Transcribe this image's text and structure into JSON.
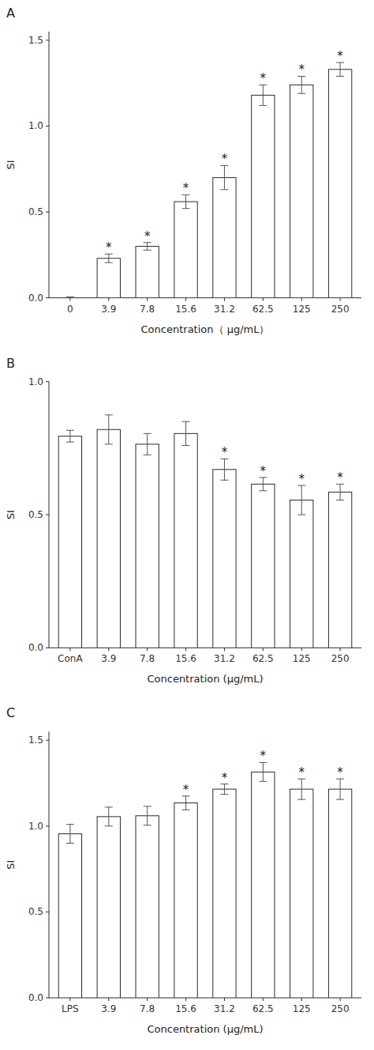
{
  "chart_data": [
    {
      "type": "bar",
      "title": "A",
      "categories": [
        "0",
        "3.9",
        "7.8",
        "15.6",
        "31.2",
        "62.5",
        "125",
        "250"
      ],
      "values": [
        0.0,
        0.23,
        0.3,
        0.56,
        0.7,
        1.18,
        1.24,
        1.33
      ],
      "errors": [
        0.005,
        0.025,
        0.022,
        0.04,
        0.07,
        0.06,
        0.05,
        0.04
      ],
      "annotations": [
        {
          "text": "*",
          "category": "3.9"
        },
        {
          "text": "*",
          "category": "7.8"
        },
        {
          "text": "*",
          "category": "15.6"
        },
        {
          "text": "*",
          "category": "31.2"
        },
        {
          "text": "*",
          "category": "62.5"
        },
        {
          "text": "*",
          "category": "125"
        },
        {
          "text": "*",
          "category": "250"
        }
      ],
      "ylabel": "SI",
      "xlabel": "Concentration（ μg/mL）",
      "ylim": [
        0.0,
        1.55
      ],
      "yticks": [
        {
          "value": 0.0,
          "label": "0.0"
        },
        0.5,
        {
          "value": 1.0,
          "label": "1.0"
        },
        1.5
      ],
      "color": "white"
    },
    {
      "type": "bar",
      "title": "B",
      "categories": [
        "ConA",
        "3.9",
        "7.8",
        "15.6",
        "31.2",
        "62.5",
        "125",
        "250"
      ],
      "values": [
        0.795,
        0.82,
        0.765,
        0.805,
        0.67,
        0.615,
        0.555,
        0.585
      ],
      "errors": [
        0.022,
        0.055,
        0.04,
        0.045,
        0.04,
        0.025,
        0.055,
        0.03
      ],
      "annotations": [
        {
          "text": "*",
          "category": "31.2"
        },
        {
          "text": "*",
          "category": "62.5"
        },
        {
          "text": "*",
          "category": "125"
        },
        {
          "text": "*",
          "category": "250"
        }
      ],
      "ylabel": "SI",
      "xlabel": "Concentration (μg/mL)",
      "ylim": [
        0.0,
        1.0
      ],
      "yticks": [
        {
          "value": 0.0,
          "label": "0.0"
        },
        0.5,
        {
          "value": 1.0,
          "label": "1.0"
        }
      ],
      "color": "white"
    },
    {
      "type": "bar",
      "title": "C",
      "categories": [
        "LPS",
        "3.9",
        "7.8",
        "15.6",
        "31.2",
        "62.5",
        "125",
        "250"
      ],
      "values": [
        0.955,
        1.055,
        1.06,
        1.135,
        1.215,
        1.315,
        1.215,
        1.215
      ],
      "errors": [
        0.055,
        0.055,
        0.055,
        0.04,
        0.03,
        0.055,
        0.06,
        0.06
      ],
      "annotations": [
        {
          "text": "*",
          "category": "15.6"
        },
        {
          "text": "*",
          "category": "31.2"
        },
        {
          "text": "*",
          "category": "62.5"
        },
        {
          "text": "*",
          "category": "125"
        },
        {
          "text": "*",
          "category": "250"
        }
      ],
      "ylabel": "SI",
      "xlabel": "Concentration (μg/mL)",
      "ylim": [
        0.0,
        1.55
      ],
      "yticks": [
        {
          "value": 0.0,
          "label": "0.0"
        },
        0.5,
        {
          "value": 1.0,
          "label": "1.0"
        },
        1.5
      ],
      "color": "white"
    }
  ]
}
